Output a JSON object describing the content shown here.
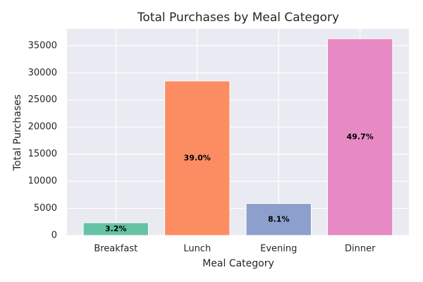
{
  "chart_data": {
    "type": "bar",
    "title": "Total Purchases by Meal Category",
    "x_label": "Meal Category",
    "y_label": "Total Purchases",
    "categories": [
      "Breakfast",
      "Lunch",
      "Evening",
      "Dinner"
    ],
    "values": [
      2350,
      28500,
      5900,
      36300
    ],
    "colors": [
      "#66c2a5",
      "#fc8d62",
      "#8da0cb",
      "#e78ac3"
    ],
    "shares": {
      "values": [
        3.2,
        39.0,
        8.1,
        49.7
      ],
      "value_labels": [
        "3.2%",
        "39.0%",
        "8.1%",
        "49.7%"
      ]
    },
    "ylim": [
      0,
      38100
    ],
    "yticks": [
      0,
      5000,
      10000,
      15000,
      20000,
      25000,
      30000,
      35000
    ],
    "grid": true
  }
}
